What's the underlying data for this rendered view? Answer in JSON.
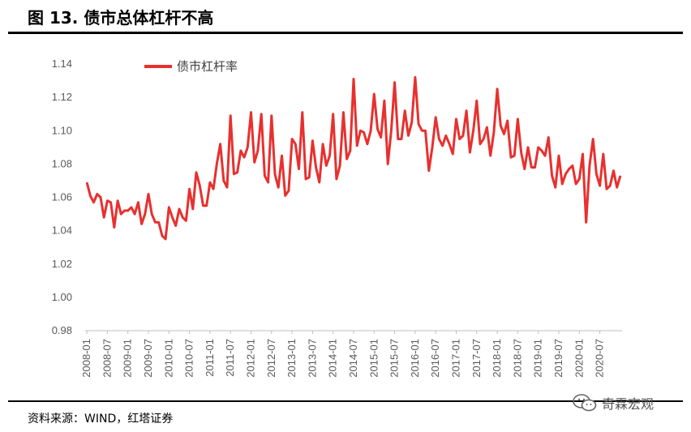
{
  "figure_title": "图 13. 债市总体杠杆不高",
  "source": "资料来源：WIND，红塔证券",
  "watermark": "奇霖宏观",
  "colors": {
    "series": "#e8302e",
    "axis": "#bfbfbf",
    "text": "#595959"
  },
  "chart_data": {
    "type": "line",
    "legend_position": "top-left",
    "grid": false,
    "ylim": [
      0.98,
      1.14
    ],
    "yticks": [
      "0.98",
      "1.00",
      "1.02",
      "1.04",
      "1.06",
      "1.08",
      "1.10",
      "1.12",
      "1.14"
    ],
    "xticks": [
      "2008-01",
      "2008-07",
      "2009-01",
      "2009-07",
      "2010-01",
      "2010-07",
      "2011-01",
      "2011-07",
      "2012-01",
      "2012-07",
      "2013-01",
      "2013-07",
      "2014-01",
      "2014-07",
      "2015-01",
      "2015-07",
      "2016-01",
      "2016-07",
      "2017-01",
      "2017-07",
      "2018-01",
      "2018-07",
      "2019-01",
      "2019-07",
      "2020-01",
      "2020-07"
    ],
    "x_start": "2008-01",
    "series": [
      {
        "name": "债市杠杆率",
        "values": [
          1.069,
          1.061,
          1.057,
          1.062,
          1.06,
          1.048,
          1.058,
          1.057,
          1.042,
          1.058,
          1.05,
          1.052,
          1.052,
          1.054,
          1.05,
          1.057,
          1.044,
          1.05,
          1.062,
          1.05,
          1.045,
          1.045,
          1.037,
          1.035,
          1.054,
          1.048,
          1.043,
          1.053,
          1.048,
          1.046,
          1.065,
          1.053,
          1.075,
          1.067,
          1.055,
          1.055,
          1.069,
          1.065,
          1.08,
          1.092,
          1.07,
          1.066,
          1.109,
          1.074,
          1.075,
          1.088,
          1.084,
          1.09,
          1.111,
          1.081,
          1.088,
          1.11,
          1.073,
          1.069,
          1.109,
          1.074,
          1.066,
          1.085,
          1.061,
          1.064,
          1.095,
          1.092,
          1.077,
          1.111,
          1.071,
          1.072,
          1.094,
          1.078,
          1.069,
          1.092,
          1.079,
          1.085,
          1.11,
          1.071,
          1.079,
          1.111,
          1.083,
          1.088,
          1.131,
          1.091,
          1.1,
          1.099,
          1.092,
          1.1,
          1.122,
          1.101,
          1.096,
          1.118,
          1.08,
          1.1,
          1.129,
          1.095,
          1.095,
          1.112,
          1.097,
          1.105,
          1.132,
          1.104,
          1.1,
          1.1,
          1.076,
          1.09,
          1.108,
          1.095,
          1.091,
          1.097,
          1.092,
          1.086,
          1.107,
          1.095,
          1.097,
          1.112,
          1.087,
          1.1,
          1.118,
          1.092,
          1.095,
          1.102,
          1.085,
          1.099,
          1.125,
          1.103,
          1.098,
          1.106,
          1.084,
          1.085,
          1.107,
          1.087,
          1.077,
          1.09,
          1.078,
          1.078,
          1.09,
          1.088,
          1.085,
          1.096,
          1.073,
          1.066,
          1.085,
          1.068,
          1.074,
          1.077,
          1.079,
          1.068,
          1.071,
          1.086,
          1.045,
          1.079,
          1.095,
          1.074,
          1.067,
          1.086,
          1.065,
          1.067,
          1.076,
          1.066,
          1.073
        ]
      }
    ]
  }
}
